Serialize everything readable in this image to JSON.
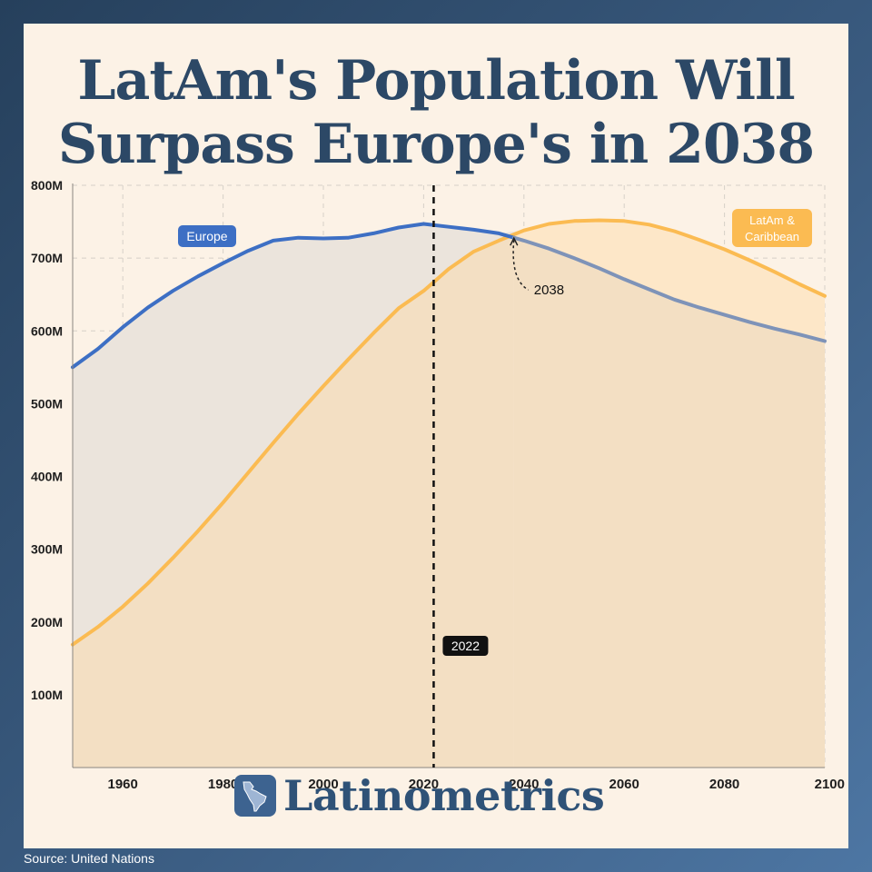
{
  "title_lines": [
    "LatAm's Population Will",
    "Surpass Europe's in 2038"
  ],
  "brand": {
    "name": "Latinometrics",
    "icon": "latin-america-map-icon"
  },
  "source": "Source: United Nations",
  "colors": {
    "europe": "#3d6fc4",
    "latam": "#fbbb52",
    "europe_fill": "#ebe4dc",
    "latam_fill": "#f3dfc3",
    "latam_future_fill": "#fde7c8",
    "europe_future_line": "#7e93b8"
  },
  "chart_data": {
    "type": "area",
    "xlim": [
      1950,
      2100
    ],
    "ylim": [
      0,
      800
    ],
    "x_ticks": [
      1960,
      1980,
      2000,
      2020,
      2040,
      2060,
      2080,
      2100
    ],
    "y_ticks": [
      {
        "value": 100,
        "label": "100M"
      },
      {
        "value": 200,
        "label": "200M"
      },
      {
        "value": 300,
        "label": "300M"
      },
      {
        "value": 400,
        "label": "400M"
      },
      {
        "value": 500,
        "label": "500M"
      },
      {
        "value": 600,
        "label": "600M"
      },
      {
        "value": 700,
        "label": "700M"
      },
      {
        "value": 800,
        "label": "800M"
      }
    ],
    "grid": true,
    "y_unit": "millions",
    "series": [
      {
        "name": "Europe",
        "x": [
          1950,
          1955,
          1960,
          1965,
          1970,
          1975,
          1980,
          1985,
          1990,
          1995,
          2000,
          2005,
          2010,
          2015,
          2020,
          2025,
          2030,
          2035,
          2040,
          2045,
          2050,
          2055,
          2060,
          2065,
          2070,
          2075,
          2080,
          2085,
          2090,
          2095,
          2100
        ],
        "values": [
          550,
          575,
          605,
          632,
          655,
          675,
          693,
          710,
          724,
          728,
          727,
          728,
          734,
          742,
          747,
          743,
          739,
          734,
          724,
          713,
          700,
          686,
          671,
          657,
          643,
          632,
          622,
          612,
          603,
          595,
          586
        ]
      },
      {
        "name": "LatAm & Caribbean",
        "x": [
          1950,
          1955,
          1960,
          1965,
          1970,
          1975,
          1980,
          1985,
          1990,
          1995,
          2000,
          2005,
          2010,
          2015,
          2020,
          2025,
          2030,
          2035,
          2040,
          2045,
          2050,
          2055,
          2060,
          2065,
          2070,
          2075,
          2080,
          2085,
          2090,
          2095,
          2100
        ],
        "values": [
          169,
          193,
          221,
          253,
          288,
          325,
          364,
          405,
          446,
          486,
          524,
          561,
          597,
          631,
          655,
          685,
          709,
          724,
          738,
          747,
          751,
          752,
          751,
          746,
          737,
          725,
          712,
          697,
          681,
          664,
          648
        ]
      }
    ],
    "annotations": [
      {
        "type": "vline",
        "x": 2022,
        "label": "2022"
      },
      {
        "type": "point",
        "x": 2038,
        "label": "2038"
      }
    ]
  }
}
